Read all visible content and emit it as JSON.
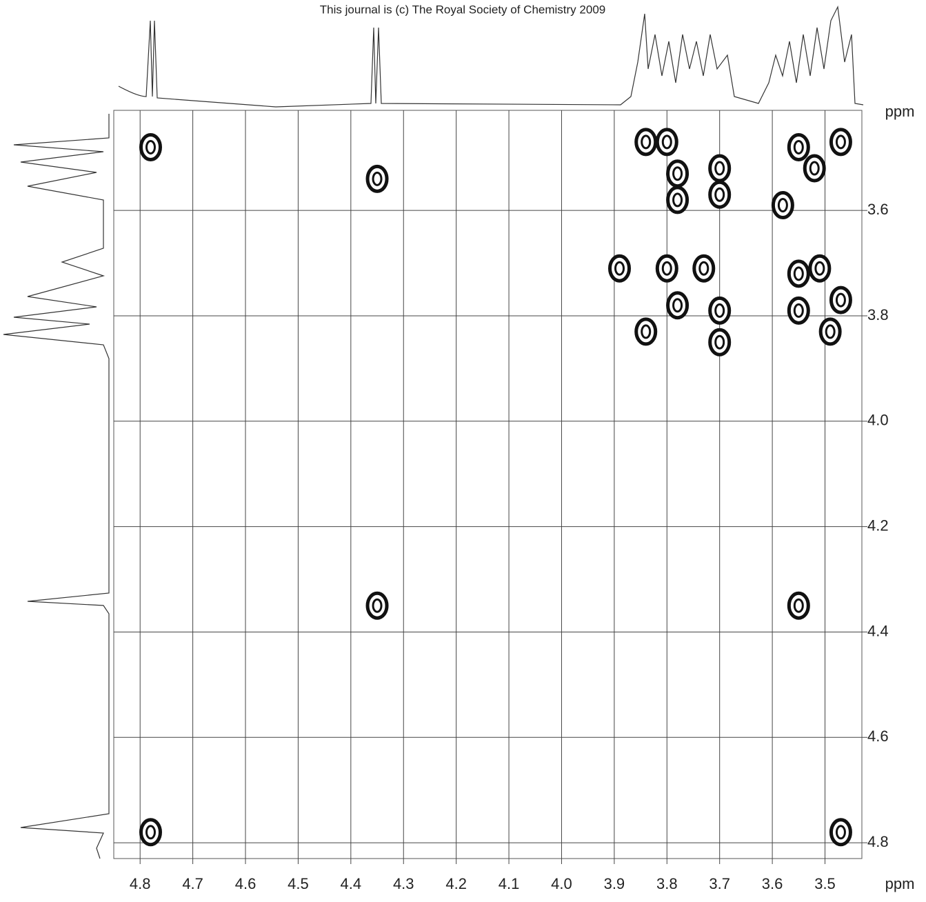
{
  "chart_data": {
    "type": "scatter",
    "title": "This journal is (c) The Royal Society of Chemistry 2009",
    "x_label": "ppm",
    "y_label": "ppm",
    "x": [
      4.78,
      4.35,
      3.84,
      3.8,
      3.78,
      3.78,
      3.7,
      3.7,
      3.47,
      3.52,
      3.58,
      3.55,
      3.89,
      3.8,
      3.73,
      3.55,
      3.51,
      3.78,
      3.7,
      3.55,
      3.47,
      3.84,
      3.7,
      3.49,
      4.35,
      3.55,
      4.78,
      3.47
    ],
    "values": [
      3.48,
      3.54,
      3.47,
      3.47,
      3.53,
      3.58,
      3.57,
      3.52,
      3.47,
      3.52,
      3.59,
      3.48,
      3.71,
      3.71,
      3.71,
      3.72,
      3.71,
      3.78,
      3.79,
      3.79,
      3.77,
      3.83,
      3.85,
      3.83,
      4.35,
      4.35,
      4.78,
      4.78
    ],
    "color": "#111",
    "xlim": [
      4.85,
      3.43
    ],
    "ylim": [
      3.41,
      4.83
    ],
    "xticks": [
      4.8,
      4.7,
      4.6,
      4.5,
      4.4,
      4.3,
      4.2,
      4.1,
      {
        "value": 4,
        "label": "4.0"
      },
      3.9,
      3.8,
      3.7,
      3.6,
      3.5
    ],
    "yticks": [
      3.6,
      3.8,
      {
        "value": 4,
        "label": "4.0"
      },
      4.2,
      4.4,
      4.6,
      4.8
    ],
    "grid": true
  }
}
